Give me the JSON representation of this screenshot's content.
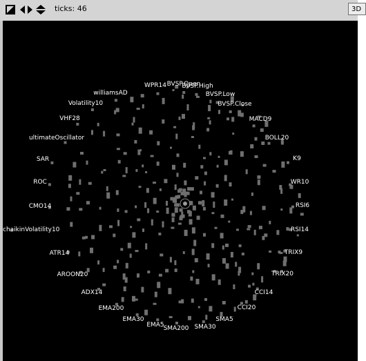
{
  "toolbar": {
    "ticks_label": "ticks: 46",
    "mode_button_label": "3D",
    "icons": [
      "pin-corner-icon",
      "left-right-arrows-icon",
      "up-down-arrows-icon"
    ]
  },
  "graph": {
    "background_color": "#000000",
    "node_color": "#6f6f6f",
    "label_color": "#ffffff",
    "labels": [
      "BVSP.Open",
      "WPR14",
      "BVSP.High",
      "BVSP.Low",
      "BVSP.Close",
      "MACD9",
      "BOLL20",
      "K9",
      "WR10",
      "RSI6",
      "RSI14",
      "TRIX9",
      "TRIX20",
      "CCI14",
      "CCI20",
      "SMA5",
      "SMA30",
      "SMA200",
      "EMA5",
      "EMA30",
      "EMA200",
      "ADX14",
      "AROON20",
      "ATR14",
      "chaikinVolatility10",
      "CMO14",
      "ROC",
      "SAR",
      "ultimateOscillator",
      "VHF28",
      "Volatility10",
      "williamsAD"
    ]
  }
}
